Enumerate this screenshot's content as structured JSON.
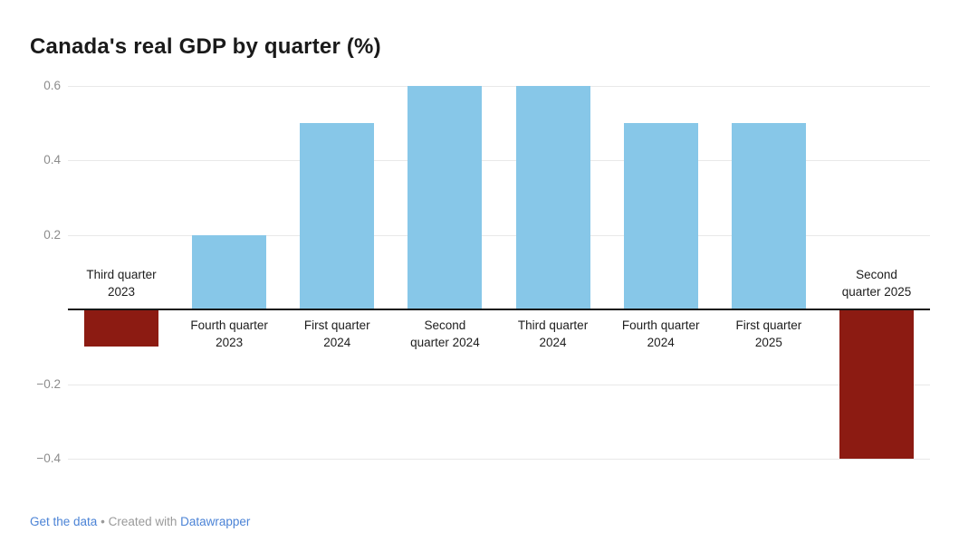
{
  "chart_data": {
    "type": "bar",
    "title": "Canada's real GDP by quarter (%)",
    "categories": [
      "Third quarter 2023",
      "Fourth quarter 2023",
      "First quarter 2024",
      "Second quarter 2024",
      "Third quarter 2024",
      "Fourth quarter 2024",
      "First quarter 2025",
      "Second quarter 2025"
    ],
    "category_lines": [
      [
        "Third quarter",
        "2023"
      ],
      [
        "Fourth quarter",
        "2023"
      ],
      [
        "First quarter",
        "2024"
      ],
      [
        "Second",
        "quarter 2024"
      ],
      [
        "Third quarter",
        "2024"
      ],
      [
        "Fourth quarter",
        "2024"
      ],
      [
        "First quarter",
        "2025"
      ],
      [
        "Second",
        "quarter 2025"
      ]
    ],
    "values": [
      -0.1,
      0.2,
      0.5,
      0.6,
      0.6,
      0.5,
      0.5,
      -0.4
    ],
    "xlabel": "",
    "ylabel": "",
    "ylim": [
      -0.4,
      0.6
    ],
    "yticks": [
      {
        "value": 0.6,
        "label": "0.6"
      },
      {
        "value": 0.4,
        "label": "0.4"
      },
      {
        "value": 0.2,
        "label": "0.2"
      },
      {
        "value": -0.2,
        "label": "−0.2"
      },
      {
        "value": -0.4,
        "label": "−0.4"
      }
    ],
    "grid": true,
    "legend": "none"
  },
  "colors": {
    "positive_bar": "#87C7E8",
    "negative_bar": "#8C1B12",
    "gridline": "#E8E8E8",
    "baseline": "#161616",
    "tick_text": "#8C8C8C",
    "label_text": "#1D1D1D",
    "link": "#4B83D6",
    "footer_text": "#9A9A9A"
  },
  "footer": {
    "get_data_label": "Get the data",
    "separator": "•",
    "created_with": "Created with",
    "tool_label": "Datawrapper"
  }
}
